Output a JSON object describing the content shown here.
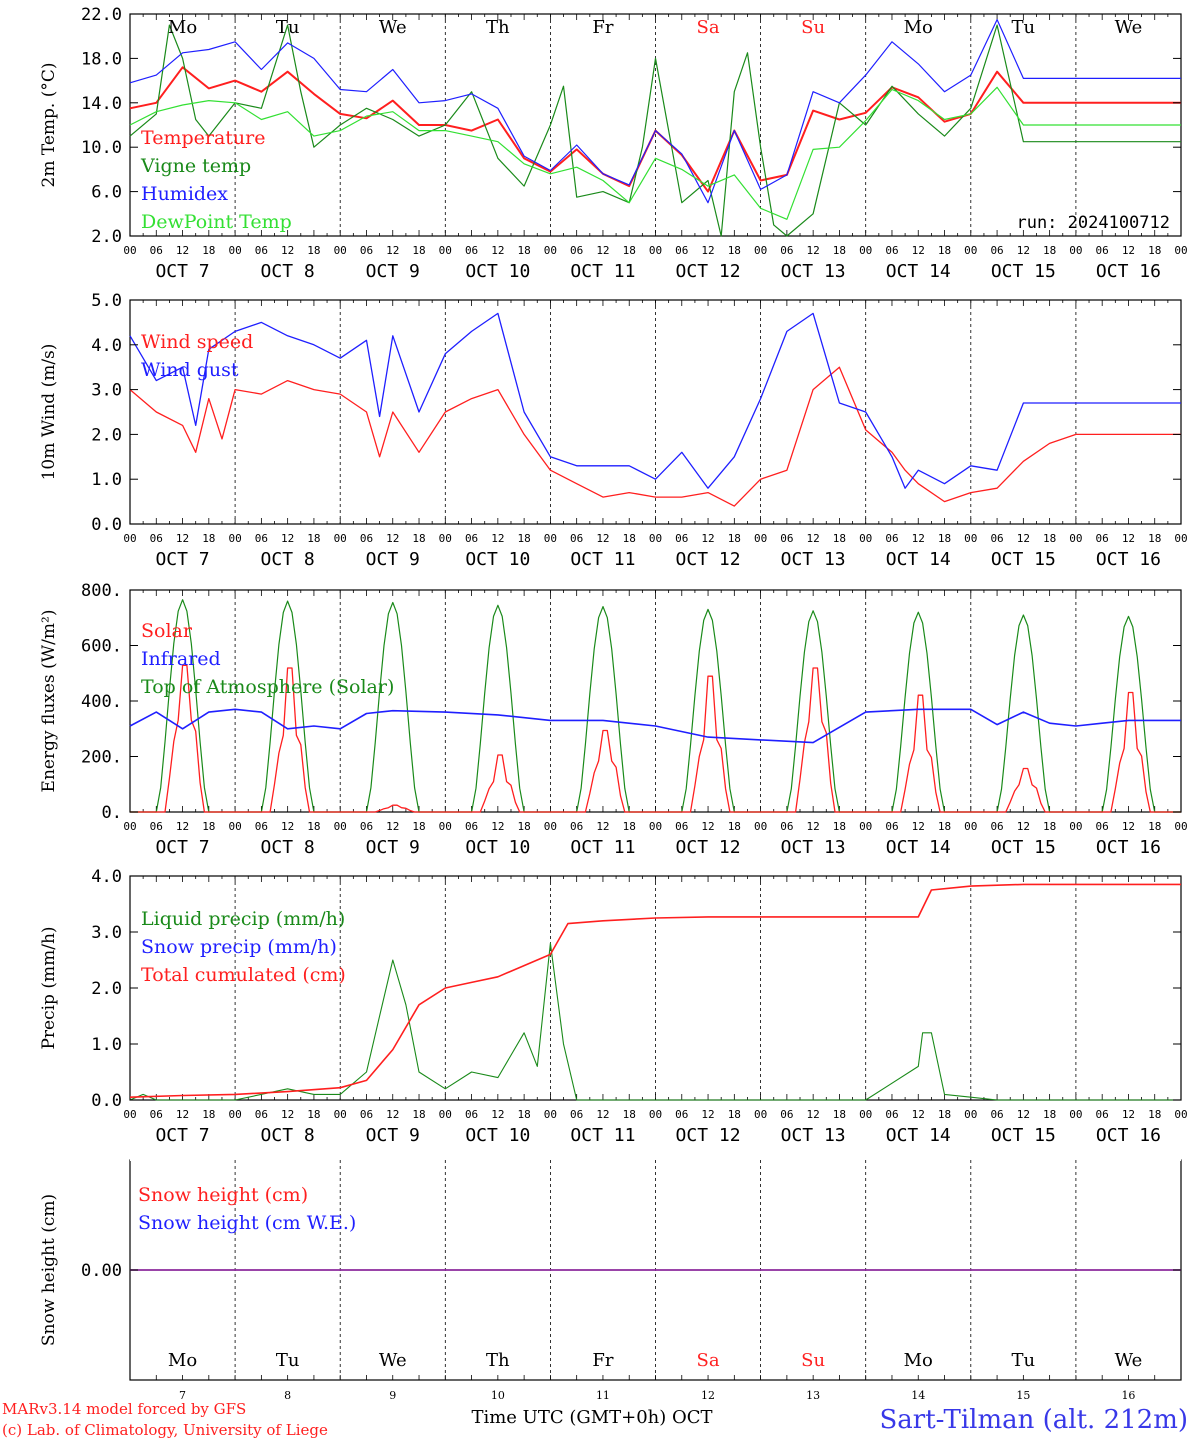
{
  "chart_data": [
    {
      "type": "line",
      "ylabel": "2m Temp. (°C)",
      "ylim": [
        2,
        22
      ],
      "yticks": [
        "2.0",
        "6.0",
        "10.0",
        "14.0",
        "18.0",
        "22.0"
      ],
      "x_unit": "hours since Oct 7 00 UTC",
      "legend": [
        {
          "label": "Temperature",
          "color": "#ff1f1f"
        },
        {
          "label": "Vigne temp",
          "color": "#1a8a1a"
        },
        {
          "label": "Humidex",
          "color": "#1f1fff"
        },
        {
          "label": "DewPoint Temp",
          "color": "#33e033"
        }
      ],
      "annotation": "run: 2024100712",
      "series": [
        {
          "name": "Temperature",
          "color": "#ff1f1f",
          "x": [
            0,
            6,
            12,
            18,
            24,
            30,
            36,
            42,
            48,
            54,
            60,
            66,
            72,
            78,
            84,
            90,
            96,
            102,
            108,
            114,
            120,
            126,
            132,
            138,
            144,
            150,
            156,
            162,
            168,
            174,
            180,
            186,
            192,
            198,
            204,
            210,
            216,
            222,
            228,
            234,
            240
          ],
          "y": [
            13.5,
            14.0,
            17.2,
            15.3,
            16.0,
            15.0,
            16.8,
            14.8,
            13.0,
            12.6,
            14.2,
            12.0,
            12.0,
            11.5,
            12.5,
            9.0,
            7.8,
            9.8,
            7.6,
            6.5,
            11.5,
            9.3,
            6.0,
            11.5,
            7.0,
            7.5,
            13.3,
            12.5,
            13.1,
            15.4,
            14.5,
            12.3,
            13.0,
            16.8,
            14.0,
            14.0,
            14.0,
            14.0,
            14.0,
            14.0,
            14.0
          ]
        },
        {
          "name": "Vigne temp",
          "color": "#1a8a1a",
          "x": [
            0,
            6,
            9,
            12,
            15,
            18,
            24,
            30,
            36,
            39,
            42,
            48,
            54,
            60,
            66,
            72,
            78,
            84,
            90,
            96,
            99,
            102,
            108,
            114,
            117,
            120,
            126,
            132,
            135,
            138,
            141,
            144,
            147,
            150,
            156,
            162,
            168,
            174,
            180,
            186,
            192,
            198,
            204,
            210,
            216,
            222,
            228,
            234,
            240
          ],
          "y": [
            11.0,
            13.0,
            21.0,
            18.0,
            12.5,
            11.0,
            14.0,
            13.5,
            21.0,
            15.0,
            10.0,
            12.0,
            13.5,
            12.5,
            11.0,
            12.0,
            15.0,
            9.0,
            6.5,
            12.0,
            15.5,
            5.5,
            6.0,
            5.0,
            10.0,
            18.0,
            5.0,
            7.0,
            2.0,
            15.0,
            18.5,
            10.0,
            3.0,
            2.0,
            4.0,
            14.0,
            12.0,
            15.5,
            13.0,
            11.0,
            13.5,
            21.0,
            10.5,
            10.5,
            10.5,
            10.5,
            10.5,
            10.5,
            10.5
          ]
        },
        {
          "name": "Humidex",
          "color": "#1f1fff",
          "x": [
            0,
            6,
            12,
            18,
            24,
            30,
            36,
            42,
            48,
            54,
            60,
            66,
            72,
            78,
            84,
            90,
            96,
            102,
            108,
            114,
            120,
            126,
            132,
            138,
            144,
            150,
            156,
            162,
            168,
            174,
            180,
            186,
            192,
            198,
            204,
            210,
            216,
            222,
            228,
            234,
            240
          ],
          "y": [
            15.8,
            16.5,
            18.5,
            18.8,
            19.5,
            17.0,
            19.4,
            18.0,
            15.2,
            15.0,
            17.0,
            14.0,
            14.2,
            14.8,
            13.5,
            9.2,
            7.9,
            10.2,
            7.6,
            6.6,
            11.5,
            9.4,
            5.0,
            11.5,
            6.2,
            7.5,
            15.0,
            14.0,
            16.5,
            19.5,
            17.5,
            15.0,
            16.5,
            21.5,
            16.2,
            16.2,
            16.2,
            16.2,
            16.2,
            16.2,
            16.2
          ]
        },
        {
          "name": "DewPoint Temp",
          "color": "#33e033",
          "x": [
            0,
            6,
            12,
            18,
            24,
            30,
            36,
            42,
            48,
            54,
            60,
            66,
            72,
            78,
            84,
            90,
            96,
            102,
            108,
            114,
            120,
            126,
            132,
            138,
            144,
            150,
            156,
            162,
            168,
            174,
            180,
            186,
            192,
            198,
            204,
            210,
            216,
            222,
            228,
            234,
            240
          ],
          "y": [
            12.0,
            13.2,
            13.8,
            14.2,
            14.0,
            12.5,
            13.2,
            11.0,
            11.5,
            12.8,
            13.2,
            11.5,
            11.5,
            11.0,
            10.5,
            8.5,
            7.6,
            8.2,
            7.0,
            5.0,
            9.0,
            8.0,
            6.5,
            7.5,
            4.5,
            3.5,
            9.8,
            10.0,
            12.4,
            15.2,
            14.2,
            12.5,
            13.0,
            15.4,
            12.0,
            12.0,
            12.0,
            12.0,
            12.0,
            12.0,
            12.0
          ]
        }
      ]
    },
    {
      "type": "line",
      "ylabel": "10m Wind (m/s)",
      "ylim": [
        0,
        5
      ],
      "yticks": [
        "0.0",
        "1.0",
        "2.0",
        "3.0",
        "4.0",
        "5.0"
      ],
      "legend": [
        {
          "label": "Wind speed",
          "color": "#ff1f1f"
        },
        {
          "label": "Wind gust",
          "color": "#1f1fff"
        }
      ],
      "series": [
        {
          "name": "Wind speed",
          "color": "#ff1f1f",
          "x": [
            0,
            6,
            12,
            15,
            18,
            21,
            24,
            30,
            36,
            42,
            48,
            54,
            57,
            60,
            66,
            72,
            78,
            84,
            90,
            96,
            102,
            108,
            114,
            120,
            126,
            132,
            138,
            144,
            150,
            156,
            162,
            168,
            174,
            177,
            180,
            186,
            192,
            198,
            204,
            210,
            216,
            222,
            228,
            234,
            240
          ],
          "y": [
            3.0,
            2.5,
            2.2,
            1.6,
            2.8,
            1.9,
            3.0,
            2.9,
            3.2,
            3.0,
            2.9,
            2.5,
            1.5,
            2.5,
            1.6,
            2.5,
            2.8,
            3.0,
            2.0,
            1.2,
            0.9,
            0.6,
            0.7,
            0.6,
            0.6,
            0.7,
            0.4,
            1.0,
            1.2,
            3.0,
            3.5,
            2.1,
            1.6,
            1.2,
            0.9,
            0.5,
            0.7,
            0.8,
            1.4,
            1.8,
            2.0,
            2.0,
            2.0,
            2.0,
            2.0
          ]
        },
        {
          "name": "Wind gust",
          "color": "#1f1fff",
          "x": [
            0,
            6,
            12,
            15,
            18,
            24,
            30,
            36,
            42,
            48,
            54,
            57,
            60,
            66,
            72,
            78,
            84,
            90,
            96,
            102,
            108,
            114,
            120,
            126,
            132,
            138,
            144,
            150,
            156,
            162,
            168,
            174,
            177,
            180,
            186,
            192,
            198,
            204,
            210,
            216,
            222,
            228,
            234,
            240
          ],
          "y": [
            4.2,
            3.2,
            3.5,
            2.2,
            3.9,
            4.3,
            4.5,
            4.2,
            4.0,
            3.7,
            4.1,
            2.4,
            4.2,
            2.5,
            3.8,
            4.3,
            4.7,
            2.5,
            1.5,
            1.3,
            1.3,
            1.3,
            1.0,
            1.6,
            0.8,
            1.5,
            2.8,
            4.3,
            4.7,
            2.7,
            2.5,
            1.5,
            0.8,
            1.2,
            0.9,
            1.3,
            1.2,
            2.7,
            2.7,
            2.7,
            2.7,
            2.7,
            2.7,
            2.7
          ]
        }
      ]
    },
    {
      "type": "line",
      "ylabel": "Energy fluxes (W/m²)",
      "ylim": [
        0,
        800
      ],
      "yticks": [
        "0.",
        "200.",
        "400.",
        "600.",
        "800."
      ],
      "legend": [
        {
          "label": "Solar",
          "color": "#ff1f1f"
        },
        {
          "label": "Infrared",
          "color": "#1f1fff"
        },
        {
          "label": "Top of Atmosphere (Solar)",
          "color": "#1a8a1a"
        }
      ],
      "toa_peaks": [
        765,
        760,
        755,
        745,
        740,
        730,
        725,
        720,
        710,
        705
      ],
      "solar_peaks": [
        540,
        530,
        25,
        210,
        300,
        500,
        530,
        430,
        160,
        440
      ],
      "infrared": {
        "x": [
          0,
          6,
          12,
          18,
          24,
          30,
          36,
          42,
          48,
          54,
          60,
          72,
          84,
          96,
          108,
          120,
          132,
          144,
          156,
          168,
          180,
          192,
          198,
          204,
          210,
          216,
          222,
          228,
          234,
          240
        ],
        "y": [
          310,
          360,
          300,
          360,
          370,
          360,
          300,
          310,
          300,
          355,
          365,
          360,
          350,
          330,
          330,
          310,
          270,
          260,
          250,
          360,
          370,
          370,
          315,
          360,
          320,
          310,
          320,
          330,
          330,
          330
        ]
      }
    },
    {
      "type": "line",
      "ylabel": "Precip (mm/h)",
      "ylim": [
        0,
        4
      ],
      "yticks": [
        "0.0",
        "1.0",
        "2.0",
        "3.0",
        "4.0"
      ],
      "legend": [
        {
          "label": "Liquid precip (mm/h)",
          "color": "#1a8a1a"
        },
        {
          "label": "Snow precip (mm/h)",
          "color": "#1f1fff"
        },
        {
          "label": "Total cumulated (cm)",
          "color": "#ff1f1f"
        }
      ],
      "series": [
        {
          "name": "Liquid precip (mm/h)",
          "color": "#1a8a1a",
          "x": [
            0,
            3,
            6,
            12,
            18,
            24,
            36,
            42,
            48,
            54,
            57,
            60,
            63,
            66,
            72,
            78,
            84,
            90,
            93,
            96,
            99,
            102,
            108,
            120,
            132,
            144,
            150,
            168,
            180,
            181,
            183,
            186,
            192,
            198,
            204,
            210,
            216,
            222,
            228,
            234,
            240
          ],
          "y": [
            0,
            0.1,
            0,
            0,
            0,
            0,
            0.2,
            0.1,
            0.1,
            0.5,
            1.5,
            2.5,
            1.7,
            0.5,
            0.2,
            0.5,
            0.4,
            1.2,
            0.6,
            2.8,
            1.0,
            0,
            0,
            0,
            0,
            0,
            0,
            0,
            0.6,
            1.2,
            1.2,
            0.1,
            0.05,
            0,
            0,
            0,
            0,
            0,
            0,
            0,
            0
          ]
        },
        {
          "name": "Total cumulated (cm)",
          "color": "#ff1f1f",
          "x": [
            0,
            12,
            24,
            36,
            48,
            54,
            60,
            66,
            72,
            78,
            84,
            90,
            96,
            100,
            108,
            120,
            132,
            144,
            156,
            162,
            168,
            180,
            183,
            192,
            204,
            216,
            228,
            240
          ],
          "y": [
            0.05,
            0.08,
            0.1,
            0.15,
            0.22,
            0.35,
            0.9,
            1.7,
            2.0,
            2.1,
            2.2,
            2.4,
            2.6,
            3.15,
            3.2,
            3.25,
            3.27,
            3.27,
            3.27,
            3.27,
            3.27,
            3.27,
            3.75,
            3.82,
            3.85,
            3.85,
            3.85,
            3.85
          ]
        }
      ]
    },
    {
      "type": "line",
      "ylabel": "Snow height (cm)",
      "ytick": "0.00",
      "legend": [
        {
          "label": "Snow height (cm)",
          "color": "#ff1f1f"
        },
        {
          "label": "Snow height (cm W.E.)",
          "color": "#1f1fff"
        }
      ],
      "series": [
        {
          "name": "Snow height (cm)",
          "x": [
            0,
            240
          ],
          "y": [
            0,
            0
          ]
        },
        {
          "name": "Snow height (cm W.E.)",
          "x": [
            0,
            240
          ],
          "y": [
            0,
            0
          ]
        }
      ]
    }
  ],
  "axes": {
    "hour_ticks": [
      "00",
      "06",
      "12",
      "18"
    ],
    "end_tick": "00",
    "dates": [
      "OCT  7",
      "OCT  8",
      "OCT  9",
      "OCT 10",
      "OCT 11",
      "OCT 12",
      "OCT 13",
      "OCT 14",
      "OCT 15",
      "OCT 16"
    ],
    "weekdays": [
      "Mo",
      "Tu",
      "We",
      "Th",
      "Fr",
      "Sa",
      "Su",
      "Mo",
      "Tu",
      "We"
    ],
    "weekday_colors": [
      "#000000",
      "#000000",
      "#000000",
      "#000000",
      "#000000",
      "#ff1f1f",
      "#ff1f1f",
      "#000000",
      "#000000",
      "#000000"
    ],
    "day_numbers": [
      "7",
      "8",
      "9",
      "10",
      "11",
      "12",
      "13",
      "14",
      "15",
      "16"
    ]
  },
  "footer": {
    "model_line": "MARv3.14 model forced by GFS",
    "lab_line": "(c) Lab. of Climatology, University of Liege",
    "xlabel": "Time UTC (GMT+0h) OCT",
    "station": "Sart-Tilman (alt. 212m)"
  }
}
